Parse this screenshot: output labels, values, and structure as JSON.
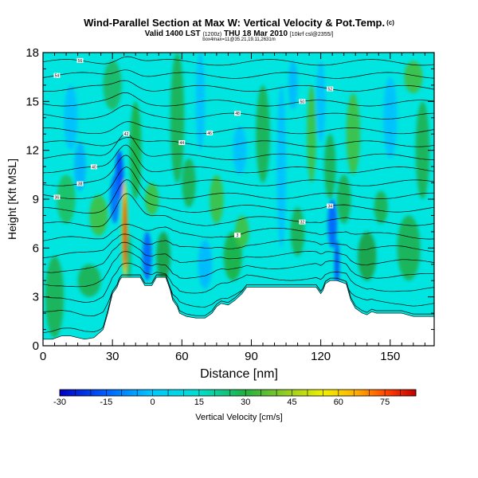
{
  "chart_data": {
    "type": "heatmap",
    "title": "Wind-Parallel Section at Max W: Vertical Velocity & Pot.Temp.",
    "title_mark": "(c)",
    "subtitle": "Valid 1400 LST",
    "subtitle_small": "(1200z)",
    "subtitle_rest": "THU 18 Mar 2010",
    "subtitle_tail": "[10krf csl@2355/]",
    "subtitle2": "box4max=11@35.21,19.11,2631m",
    "xlabel": "Distance [nm]",
    "ylabel": "Height [Kft MSL]",
    "xlim": [
      0,
      169
    ],
    "ylim": [
      0,
      18
    ],
    "x_ticks": [
      0,
      30,
      60,
      90,
      120,
      150
    ],
    "y_ticks": [
      0,
      3,
      6,
      9,
      12,
      15,
      18
    ],
    "colorbar": {
      "label": "Vertical Velocity [cm/s]",
      "ticks": [
        -30,
        -15,
        0,
        15,
        30,
        45,
        60,
        75
      ],
      "min": -30,
      "max": 85
    },
    "terrain_kft": [
      [
        0,
        0.4
      ],
      [
        4,
        0.4
      ],
      [
        8,
        0.6
      ],
      [
        12,
        0.6
      ],
      [
        15,
        0.5
      ],
      [
        18,
        0.4
      ],
      [
        22,
        0.5
      ],
      [
        26,
        1.0
      ],
      [
        28,
        2.0
      ],
      [
        30,
        3.2
      ],
      [
        32,
        3.6
      ],
      [
        33,
        4.0
      ],
      [
        34,
        4.2
      ],
      [
        36,
        4.2
      ],
      [
        39,
        4.2
      ],
      [
        42,
        4.2
      ],
      [
        44,
        3.7
      ],
      [
        47,
        3.7
      ],
      [
        49,
        4.2
      ],
      [
        53,
        4.2
      ],
      [
        55,
        3.4
      ],
      [
        56,
        2.8
      ],
      [
        58,
        2.4
      ],
      [
        59,
        2.0
      ],
      [
        62,
        1.8
      ],
      [
        66,
        1.7
      ],
      [
        70,
        1.7
      ],
      [
        73,
        2.0
      ],
      [
        75,
        2.4
      ],
      [
        77,
        2.6
      ],
      [
        80,
        2.5
      ],
      [
        83,
        2.8
      ],
      [
        86,
        3.2
      ],
      [
        88,
        3.6
      ],
      [
        92,
        3.6
      ],
      [
        100,
        3.6
      ],
      [
        110,
        3.6
      ],
      [
        118,
        3.6
      ],
      [
        120,
        3.2
      ],
      [
        121,
        3.4
      ],
      [
        122,
        3.8
      ],
      [
        124,
        4.0
      ],
      [
        127,
        4.0
      ],
      [
        131,
        3.8
      ],
      [
        133,
        2.8
      ],
      [
        135,
        2.3
      ],
      [
        138,
        2.0
      ],
      [
        140,
        1.9
      ],
      [
        142,
        2.1
      ],
      [
        144,
        2.0
      ],
      [
        150,
        2.0
      ],
      [
        155,
        2.0
      ],
      [
        160,
        1.8
      ],
      [
        165,
        1.8
      ],
      [
        169,
        1.8
      ]
    ],
    "isentropes_kft": [
      {
        "y": 1.8,
        "label": ""
      },
      {
        "y": 2.8,
        "label": ""
      },
      {
        "y": 3.6,
        "label": ""
      },
      {
        "y": 4.4,
        "label": ""
      },
      {
        "y": 5.2,
        "label": ""
      },
      {
        "y": 6.0,
        "label": ""
      },
      {
        "y": 6.8,
        "label": "3"
      },
      {
        "y": 7.6,
        "label": "32"
      },
      {
        "y": 8.4,
        "label": "34"
      },
      {
        "y": 9.2,
        "label": "36"
      },
      {
        "y": 10.0,
        "label": "38"
      },
      {
        "y": 10.8,
        "label": "40"
      },
      {
        "y": 11.6,
        "label": "42"
      },
      {
        "y": 12.4,
        "label": "44"
      },
      {
        "y": 13.2,
        "label": "46"
      },
      {
        "y": 14.1,
        "label": "48"
      },
      {
        "y": 14.9,
        "label": "50"
      },
      {
        "y": 15.8,
        "label": "52"
      },
      {
        "y": 16.6,
        "label": "54"
      },
      {
        "y": 17.4,
        "label": "56"
      }
    ],
    "updraft_max": {
      "x": 35.2,
      "y": 8.6,
      "value": 85
    }
  }
}
